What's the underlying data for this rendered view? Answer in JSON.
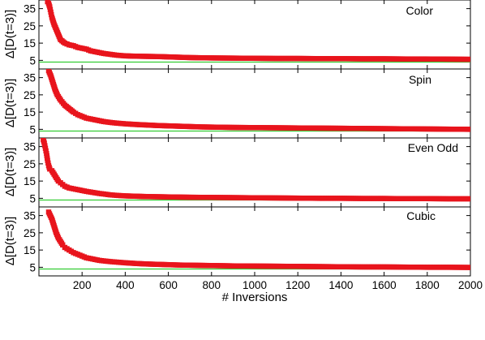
{
  "chart_data": [
    {
      "type": "scatter",
      "title": "Color",
      "ylabel": "Δ[D(t=3)]",
      "xlabel": "",
      "xlim": [
        0,
        2000
      ],
      "ylim": [
        0,
        40
      ],
      "yticks": [
        "5",
        "15",
        "25",
        "35"
      ],
      "xticks": [],
      "grid": false,
      "reference_line": {
        "y": 4.0,
        "color": "#33cc33"
      },
      "series": [
        {
          "marker_color": "#e8141c",
          "x": [
            40,
            45,
            50,
            55,
            60,
            65,
            70,
            80,
            90,
            100,
            120,
            140,
            160,
            180,
            200,
            220,
            240,
            260,
            280,
            300,
            330,
            360,
            400,
            450,
            500,
            550,
            600,
            650,
            700,
            750,
            800,
            900,
            1000,
            1100,
            1200,
            1300,
            1400,
            1500,
            1600,
            1700,
            1800,
            1900,
            2000
          ],
          "y": [
            39,
            38,
            36,
            33,
            30,
            28,
            26,
            23,
            20,
            17,
            15,
            14,
            13.5,
            12.5,
            12,
            11.5,
            10.5,
            10,
            9.5,
            9,
            8.5,
            8,
            7.6,
            7.4,
            7.3,
            7.2,
            7.0,
            6.8,
            6.6,
            6.5,
            6.4,
            6.3,
            6.2,
            6.1,
            6.1,
            6.0,
            6.0,
            5.9,
            5.9,
            5.8,
            5.8,
            5.7,
            5.6
          ]
        }
      ]
    },
    {
      "type": "scatter",
      "title": "Spin",
      "ylabel": "Δ[D(t=3)]",
      "xlabel": "",
      "xlim": [
        0,
        2000
      ],
      "ylim": [
        0,
        40
      ],
      "yticks": [
        "5",
        "15",
        "25",
        "35"
      ],
      "xticks": [],
      "grid": false,
      "reference_line": {
        "y": 4.0,
        "color": "#33cc33"
      },
      "series": [
        {
          "marker_color": "#e8141c",
          "x": [
            45,
            55,
            65,
            75,
            85,
            100,
            120,
            140,
            160,
            180,
            200,
            220,
            240,
            260,
            280,
            300,
            330,
            360,
            400,
            450,
            500,
            550,
            600,
            650,
            700,
            750,
            800,
            900,
            1000,
            1100,
            1200,
            1300,
            1400,
            1500,
            1600,
            1700,
            1800,
            1900,
            2000
          ],
          "y": [
            39,
            36,
            32,
            28,
            25,
            22,
            19,
            17,
            15,
            13.5,
            12.5,
            11.5,
            11,
            10.5,
            10,
            9.5,
            9,
            8.6,
            8.2,
            7.8,
            7.5,
            7.2,
            7.0,
            6.8,
            6.6,
            6.4,
            6.3,
            6.1,
            6.0,
            5.9,
            5.8,
            5.7,
            5.6,
            5.5,
            5.4,
            5.3,
            5.2,
            5.1,
            5.0
          ]
        }
      ]
    },
    {
      "type": "scatter",
      "title": "Even Odd",
      "ylabel": "Δ[D(t=3)]",
      "xlabel": "",
      "xlim": [
        0,
        2000
      ],
      "ylim": [
        0,
        40
      ],
      "yticks": [
        "5",
        "15",
        "25",
        "35"
      ],
      "xticks": [],
      "grid": false,
      "reference_line": {
        "y": 4.0,
        "color": "#33cc33"
      },
      "series": [
        {
          "marker_color": "#e8141c",
          "x": [
            20,
            25,
            30,
            35,
            40,
            45,
            50,
            60,
            70,
            80,
            90,
            100,
            110,
            120,
            140,
            160,
            180,
            200,
            220,
            240,
            260,
            280,
            300,
            330,
            360,
            400,
            450,
            500,
            550,
            600,
            700,
            800,
            900,
            1000,
            1100,
            1200,
            1300,
            1400,
            1500,
            1600,
            1700,
            1800,
            1900,
            2000
          ],
          "y": [
            39,
            37,
            34,
            31,
            27,
            24,
            22,
            21,
            19,
            17,
            15,
            14,
            13,
            12,
            11,
            10.5,
            10,
            9.5,
            9,
            8.6,
            8.2,
            7.8,
            7.5,
            7.0,
            6.7,
            6.4,
            6.2,
            6.0,
            5.9,
            5.8,
            5.6,
            5.5,
            5.4,
            5.3,
            5.2,
            5.1,
            5.0,
            5.0,
            4.9,
            4.9,
            4.8,
            4.8,
            4.7,
            4.7
          ]
        }
      ]
    },
    {
      "type": "scatter",
      "title": "Cubic",
      "ylabel": "Δ[D(t=3)]",
      "xlabel": "# Inversions",
      "xlim": [
        0,
        2000
      ],
      "ylim": [
        0,
        40
      ],
      "yticks": [
        "5",
        "15",
        "25",
        "35"
      ],
      "xticks": [
        "200",
        "400",
        "600",
        "800",
        "1000",
        "1200",
        "1400",
        "1600",
        "1800",
        "2000"
      ],
      "grid": false,
      "reference_line": {
        "y": 4.0,
        "color": "#33cc33"
      },
      "series": [
        {
          "marker_color": "#e8141c",
          "x": [
            45,
            60,
            70,
            80,
            90,
            100,
            110,
            120,
            140,
            160,
            180,
            200,
            220,
            240,
            260,
            280,
            300,
            330,
            360,
            400,
            450,
            500,
            550,
            600,
            650,
            700,
            750,
            800,
            900,
            1000,
            1100,
            1200,
            1300,
            1400,
            1500,
            1600,
            1700,
            1800,
            1900,
            2000
          ],
          "y": [
            37,
            33,
            29,
            25,
            22,
            20,
            18,
            16.5,
            15,
            13.5,
            12.5,
            11.5,
            10.5,
            10,
            9.5,
            9,
            8.7,
            8.3,
            8.0,
            7.6,
            7.2,
            6.9,
            6.7,
            6.5,
            6.3,
            6.2,
            6.1,
            6.0,
            5.8,
            5.7,
            5.6,
            5.5,
            5.4,
            5.3,
            5.2,
            5.2,
            5.1,
            5.0,
            5.0,
            4.9
          ]
        }
      ]
    }
  ]
}
